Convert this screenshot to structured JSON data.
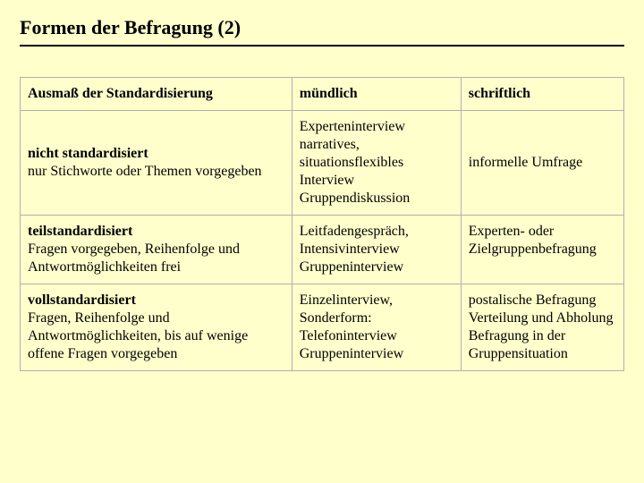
{
  "title": "Formen der Befragung (2)",
  "headers": {
    "col1": "Ausmaß der Standardisierung",
    "col2": "mündlich",
    "col3": "schriftlich"
  },
  "rows": [
    {
      "label_bold": "nicht standardisiert",
      "label_desc": "nur Stichworte oder Themen vorgegeben",
      "muendlich": "Experteninterview narratives, situationsflexibles Interview Gruppendiskussion",
      "schriftlich": "informelle Umfrage"
    },
    {
      "label_bold": "teilstandardisiert",
      "label_desc": "Fragen vorgegeben, Reihenfolge und Antwortmöglichkeiten frei",
      "muendlich": "Leitfadengespräch, Intensivinterview Gruppeninterview",
      "schriftlich": "Experten- oder Zielgruppenbefragung"
    },
    {
      "label_bold": "vollstandardisiert",
      "label_desc": "Fragen, Reihenfolge und Antwortmöglichkeiten, bis auf wenige offene Fragen vorgegeben",
      "muendlich": "Einzelinterview, Sonderform: Telefoninterview Gruppeninterview",
      "schriftlich": "postalische Befragung Verteilung und Abholung Befragung in der Gruppensituation"
    }
  ],
  "colors": {
    "background": "#ffffcc",
    "text": "#000000",
    "border": "#b0b0b0",
    "title_rule": "#000000"
  },
  "fonts": {
    "family": "Times New Roman",
    "title_size_pt": 22,
    "body_size_pt": 16
  }
}
